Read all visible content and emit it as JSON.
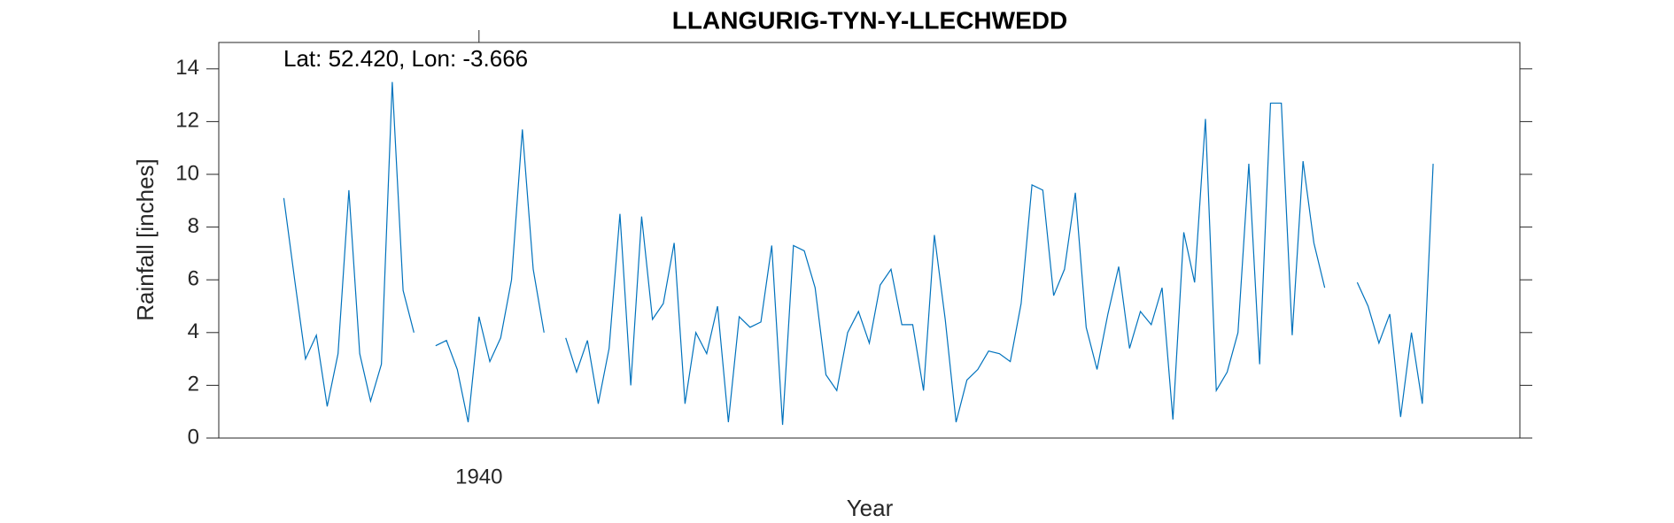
{
  "chart_data": {
    "type": "line",
    "title": "LLANGURIG-TYN-Y-LLECHWEDD",
    "xlabel": "Year",
    "ylabel": "Rainfall [inches]",
    "annotation": "Lat: 52.420, Lon: -3.666",
    "x": [
      1922,
      1923,
      1924,
      1925,
      1926,
      1927,
      1928,
      1929,
      1930,
      1931,
      1932,
      1933,
      1934,
      1935,
      1936,
      1937,
      1938,
      1939,
      1940,
      1941,
      1942,
      1943,
      1944,
      1945,
      1946,
      1947,
      1948,
      1949,
      1950,
      1951,
      1952,
      1953,
      1954,
      1955,
      1956,
      1957,
      1958,
      1959,
      1960,
      1961,
      1962,
      1963,
      1964,
      1965,
      1966,
      1967,
      1968,
      1969,
      1970,
      1971,
      1972,
      1973,
      1974,
      1975,
      1976,
      1977,
      1978,
      1979,
      1980,
      1981,
      1982,
      1983,
      1984,
      1985,
      1986,
      1987,
      1988,
      1989,
      1990,
      1991,
      1992,
      1993,
      1994,
      1995,
      1996,
      1997,
      1998,
      1999,
      2000,
      2001,
      2002,
      2003,
      2004,
      2005,
      2006,
      2007,
      2008,
      2009,
      2010,
      2011,
      2012,
      2013,
      2014,
      2015,
      2016,
      2017,
      2018,
      2019,
      2020,
      2021,
      2022,
      2023,
      2024,
      2025,
      2026,
      2027,
      2028
    ],
    "series": [
      {
        "name": "Rainfall",
        "color": "#0072bd",
        "values": [
          9.1,
          6.0,
          3.0,
          3.9,
          1.2,
          3.2,
          9.4,
          3.2,
          1.4,
          2.8,
          13.5,
          5.6,
          4.0,
          null,
          3.5,
          3.7,
          2.6,
          0.6,
          4.6,
          2.9,
          3.8,
          6.0,
          11.7,
          6.4,
          4.0,
          null,
          3.8,
          2.5,
          3.7,
          1.3,
          3.4,
          8.5,
          2.0,
          8.4,
          4.5,
          5.1,
          7.4,
          1.3,
          4.0,
          3.2,
          5.0,
          0.6,
          4.6,
          4.2,
          4.4,
          7.3,
          0.5,
          7.3,
          7.1,
          5.7,
          2.4,
          1.8,
          4.0,
          4.8,
          3.6,
          5.8,
          6.4,
          4.3,
          4.3,
          1.8,
          7.7,
          4.5,
          0.6,
          2.2,
          2.6,
          3.3,
          3.2,
          2.9,
          5.1,
          9.6,
          9.4,
          5.4,
          6.4,
          9.3,
          4.2,
          2.6,
          4.7,
          6.5,
          3.4,
          4.8,
          4.3,
          5.7,
          0.7,
          7.8,
          5.9,
          12.1,
          1.8,
          2.5,
          4.0,
          10.4,
          2.8,
          12.7,
          12.7,
          3.9,
          10.5,
          7.4,
          5.7,
          null,
          null,
          5.9,
          5.0,
          3.6,
          4.7,
          0.8,
          4.0,
          1.3,
          10.4
        ]
      }
    ],
    "xlim": [
      1916,
      2036
    ],
    "xticks": [
      1940
    ],
    "ylim": [
      0,
      15
    ],
    "yticks": [
      0,
      2,
      4,
      6,
      8,
      10,
      12,
      14
    ]
  }
}
